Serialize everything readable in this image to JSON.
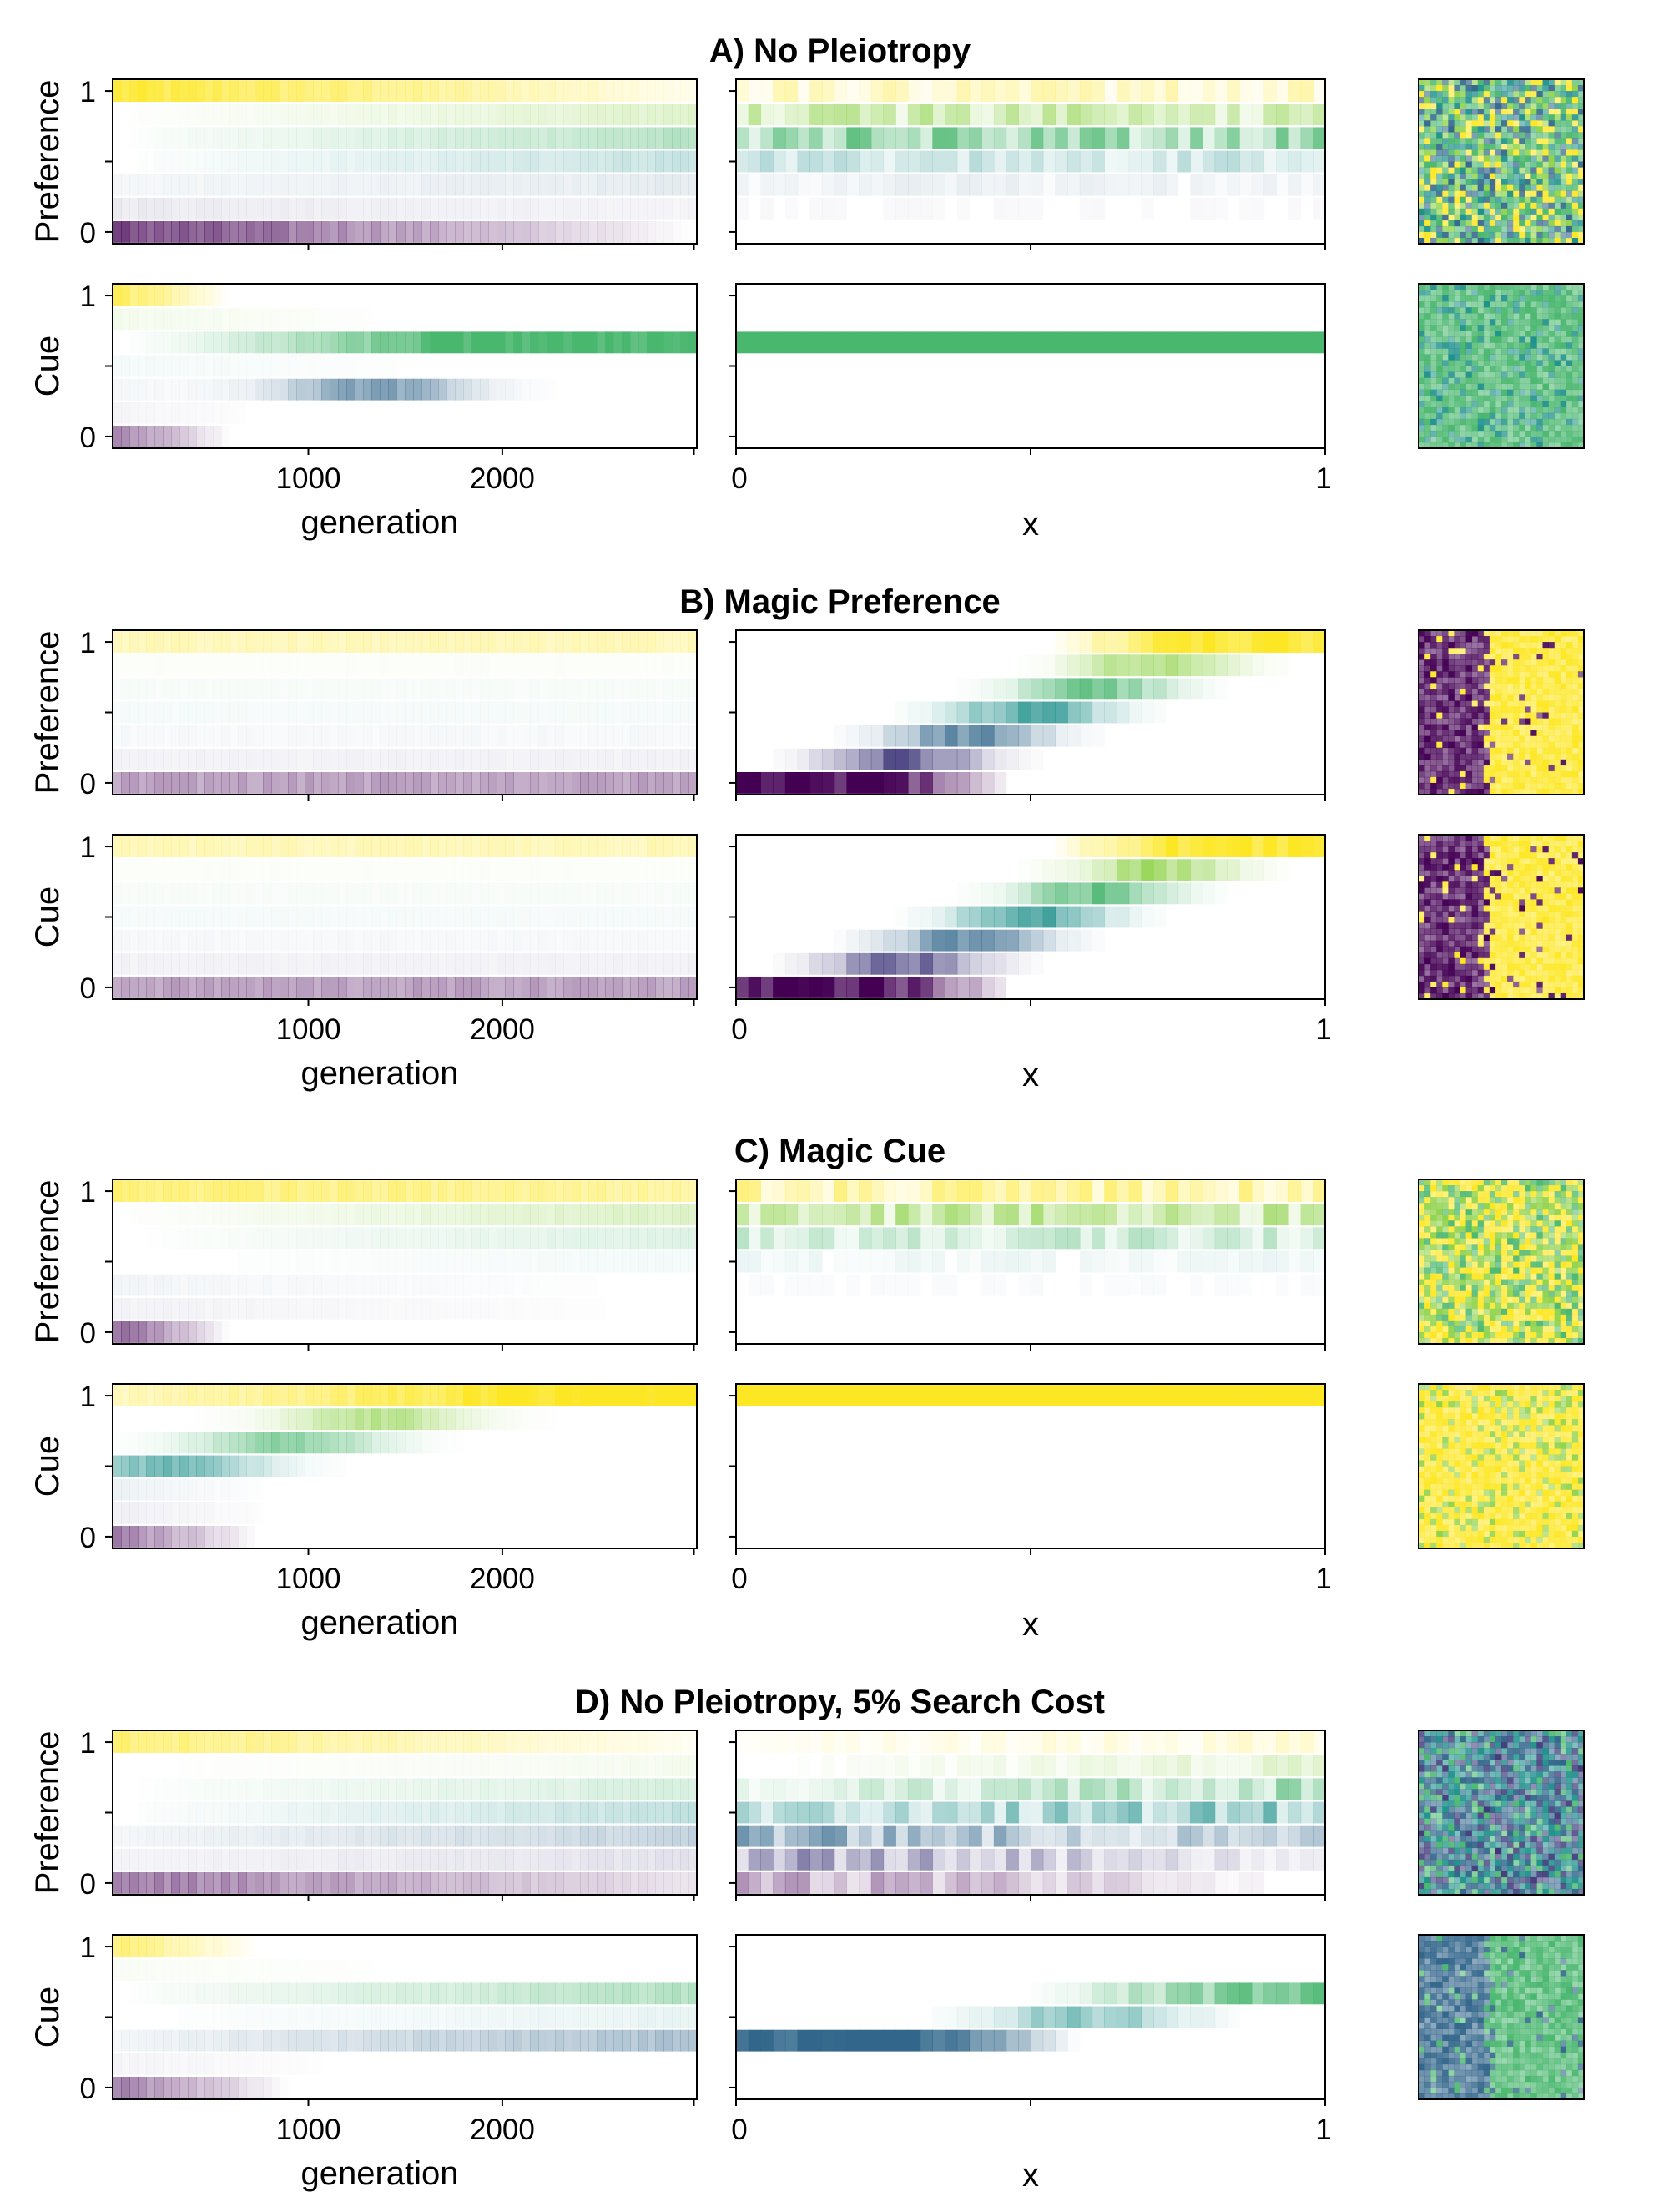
{
  "colors": {
    "viridis": [
      "#440154",
      "#3b528b",
      "#21918c",
      "#5ec962",
      "#fde725"
    ],
    "frame": "#000000"
  },
  "chart_data": [
    {
      "panel": "A",
      "title": "A) No Pleiotropy",
      "type": "heatmap",
      "rows": [
        {
          "ylabel": "Preference",
          "yticks": [
            "0",
            "1"
          ],
          "time": [
            {
              "level": 1.0,
              "start": 0.85,
              "end": 0.08
            },
            {
              "level": 0.83,
              "start": 0.0,
              "end": 0.28
            },
            {
              "level": 0.67,
              "start": 0.0,
              "end": 0.38
            },
            {
              "level": 0.5,
              "start": 0.0,
              "end": 0.25
            },
            {
              "level": 0.33,
              "start": 0.05,
              "end": 0.12
            },
            {
              "level": 0.17,
              "start": 0.1,
              "end": 0.05
            },
            {
              "level": 0.0,
              "start": 0.7,
              "end": 0.0
            }
          ],
          "space": [
            {
              "level": 1.0,
              "mean": 0.2
            },
            {
              "level": 0.83,
              "mean": 0.35
            },
            {
              "level": 0.67,
              "mean": 0.45
            },
            {
              "level": 0.5,
              "mean": 0.18
            },
            {
              "level": 0.33,
              "mean": 0.06
            },
            {
              "level": 0.17,
              "mean": 0.02
            },
            {
              "level": 0.0,
              "mean": 0.0
            }
          ],
          "map": {
            "mode": "mixed",
            "levels": [
              1.0,
              0.83,
              0.67,
              0.5,
              0.67,
              0.33
            ]
          }
        },
        {
          "ylabel": "Cue",
          "yticks": [
            "0",
            "1"
          ],
          "time": [
            {
              "level": 1.0,
              "start": 0.75,
              "end": 0.0,
              "fade": 0.2
            },
            {
              "level": 0.83,
              "start": 0.1,
              "end": 0.0,
              "fade": 0.5
            },
            {
              "level": 0.67,
              "start": 0.0,
              "end": 1.0,
              "fix": 0.55
            },
            {
              "level": 0.5,
              "start": 0.05,
              "end": 0.0,
              "fade": 0.6
            },
            {
              "level": 0.33,
              "start": 0.05,
              "end": 0.0,
              "fade": 0.55,
              "hump": 0.45
            },
            {
              "level": 0.17,
              "start": 0.05,
              "end": 0.0,
              "fade": 0.3
            },
            {
              "level": 0.0,
              "start": 0.5,
              "end": 0.0,
              "fade": 0.2
            }
          ],
          "space": [
            {
              "level": 0.67,
              "mean": 1.0
            }
          ],
          "map": {
            "mode": "mixed",
            "levels": [
              0.67,
              0.67,
              0.67,
              0.67,
              0.5
            ]
          }
        }
      ],
      "xlabel_time": "generation",
      "xticks_time": [
        "1000",
        "2000"
      ],
      "xlabel_space": "x",
      "xticks_space": [
        "0",
        "1"
      ]
    },
    {
      "panel": "B",
      "title": "B) Magic Preference",
      "type": "heatmap",
      "rows": [
        {
          "ylabel": "Preference",
          "yticks": [
            "0",
            "1"
          ],
          "time": [
            {
              "level": 1.0,
              "start": 0.3,
              "end": 0.3
            },
            {
              "level": 0.83,
              "start": 0.03,
              "end": 0.03
            },
            {
              "level": 0.67,
              "start": 0.04,
              "end": 0.04
            },
            {
              "level": 0.5,
              "start": 0.04,
              "end": 0.04
            },
            {
              "level": 0.33,
              "start": 0.04,
              "end": 0.04
            },
            {
              "level": 0.17,
              "start": 0.06,
              "end": 0.06
            },
            {
              "level": 0.0,
              "start": 0.35,
              "end": 0.35
            }
          ],
          "space": "cline",
          "map": {
            "mode": "split",
            "levels": [
              0.0,
              1.0
            ]
          }
        },
        {
          "ylabel": "Cue",
          "yticks": [
            "0",
            "1"
          ],
          "time": [
            {
              "level": 1.0,
              "start": 0.3,
              "end": 0.3
            },
            {
              "level": 0.83,
              "start": 0.03,
              "end": 0.03
            },
            {
              "level": 0.67,
              "start": 0.04,
              "end": 0.04
            },
            {
              "level": 0.5,
              "start": 0.04,
              "end": 0.04
            },
            {
              "level": 0.33,
              "start": 0.04,
              "end": 0.04
            },
            {
              "level": 0.17,
              "start": 0.06,
              "end": 0.06
            },
            {
              "level": 0.0,
              "start": 0.35,
              "end": 0.35
            }
          ],
          "space": "cline",
          "map": {
            "mode": "split",
            "levels": [
              0.0,
              1.0
            ]
          }
        }
      ],
      "xlabel_time": "generation",
      "xticks_time": [
        "1000",
        "2000"
      ],
      "xlabel_space": "x",
      "xticks_space": [
        "0",
        "1"
      ]
    },
    {
      "panel": "C",
      "title": "C) Magic Cue",
      "type": "heatmap",
      "rows": [
        {
          "ylabel": "Preference",
          "yticks": [
            "0",
            "1"
          ],
          "time": [
            {
              "level": 1.0,
              "start": 0.6,
              "end": 0.4
            },
            {
              "level": 0.83,
              "start": 0.0,
              "end": 0.32
            },
            {
              "level": 0.67,
              "start": 0.0,
              "end": 0.18
            },
            {
              "level": 0.5,
              "start": 0.0,
              "end": 0.05
            },
            {
              "level": 0.33,
              "start": 0.06,
              "end": 0.0
            },
            {
              "level": 0.17,
              "start": 0.06,
              "end": 0.0
            },
            {
              "level": 0.0,
              "start": 0.6,
              "end": 0.0,
              "fade": 0.2
            }
          ],
          "space": [
            {
              "level": 1.0,
              "mean": 0.35
            },
            {
              "level": 0.83,
              "mean": 0.4
            },
            {
              "level": 0.67,
              "mean": 0.22
            },
            {
              "level": 0.5,
              "mean": 0.05
            },
            {
              "level": 0.33,
              "mean": 0.02
            }
          ],
          "map": {
            "mode": "mixed",
            "levels": [
              1.0,
              0.83,
              1.0,
              0.83,
              0.67
            ]
          }
        },
        {
          "ylabel": "Cue",
          "yticks": [
            "0",
            "1"
          ],
          "time": [
            {
              "level": 1.0,
              "start": 0.3,
              "end": 1.0,
              "fix": 0.65
            },
            {
              "level": 0.83,
              "start": 0.0,
              "end": 0.0,
              "hump": 0.45
            },
            {
              "level": 0.67,
              "start": 0.0,
              "end": 0.0,
              "hump": 0.3
            },
            {
              "level": 0.5,
              "start": 0.0,
              "end": 0.0,
              "hump": 0.1
            },
            {
              "level": 0.33,
              "start": 0.08,
              "end": 0.0,
              "fade": 0.3
            },
            {
              "level": 0.17,
              "start": 0.08,
              "end": 0.0,
              "fade": 0.3
            },
            {
              "level": 0.0,
              "start": 0.5,
              "end": 0.0,
              "fade": 0.25
            }
          ],
          "space": [
            {
              "level": 1.0,
              "mean": 1.0
            }
          ],
          "map": {
            "mode": "mixed",
            "levels": [
              1.0,
              1.0,
              1.0,
              1.0,
              0.83
            ]
          }
        }
      ],
      "xlabel_time": "generation",
      "xticks_time": [
        "1000",
        "2000"
      ],
      "xlabel_space": "x",
      "xticks_space": [
        "0",
        "1"
      ]
    },
    {
      "panel": "D",
      "title": "D) No Pleiotropy, 5% Search Cost",
      "type": "heatmap",
      "rows": [
        {
          "ylabel": "Preference",
          "yticks": [
            "0",
            "1"
          ],
          "time": [
            {
              "level": 1.0,
              "start": 0.6,
              "end": 0.05
            },
            {
              "level": 0.83,
              "start": 0.0,
              "end": 0.08
            },
            {
              "level": 0.67,
              "start": 0.0,
              "end": 0.22
            },
            {
              "level": 0.5,
              "start": 0.0,
              "end": 0.26
            },
            {
              "level": 0.33,
              "start": 0.05,
              "end": 0.28
            },
            {
              "level": 0.17,
              "start": 0.05,
              "end": 0.14
            },
            {
              "level": 0.0,
              "start": 0.5,
              "end": 0.1
            }
          ],
          "space": "gradientD",
          "map": {
            "mode": "mixed",
            "levels": [
              0.33,
              0.17,
              0.5,
              0.67,
              0.33,
              0.5
            ]
          }
        },
        {
          "ylabel": "Cue",
          "yticks": [
            "0",
            "1"
          ],
          "time": [
            {
              "level": 1.0,
              "start": 0.6,
              "end": 0.0,
              "fade": 0.25
            },
            {
              "level": 0.83,
              "start": 0.05,
              "end": 0.0,
              "fade": 0.55
            },
            {
              "level": 0.67,
              "start": 0.0,
              "end": 0.4
            },
            {
              "level": 0.5,
              "start": 0.0,
              "end": 0.1
            },
            {
              "level": 0.33,
              "start": 0.05,
              "end": 0.4
            },
            {
              "level": 0.17,
              "start": 0.05,
              "end": 0.0,
              "fade": 0.45
            },
            {
              "level": 0.0,
              "start": 0.5,
              "end": 0.0,
              "fade": 0.3
            }
          ],
          "space": "clineD",
          "map": {
            "mode": "split",
            "levels": [
              0.33,
              0.67
            ]
          }
        }
      ],
      "xlabel_time": "generation",
      "xticks_time": [
        "1000",
        "2000"
      ],
      "xlabel_space": "x",
      "xticks_space": [
        "0",
        "1"
      ]
    }
  ]
}
